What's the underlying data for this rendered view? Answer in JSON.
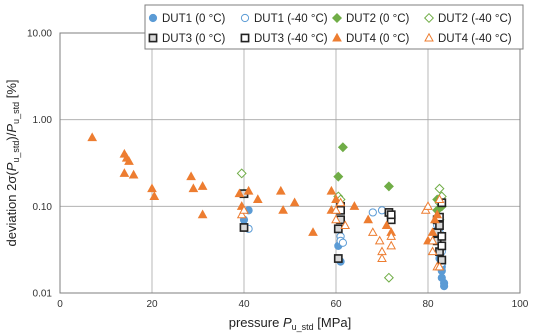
{
  "chart_data": {
    "type": "scatter",
    "title": "",
    "xlabel": "pressure P_u_std [MPa]",
    "ylabel": "deviation 2σ(P_u_std)/P_u_std [%]",
    "axis_titles": {
      "x": {
        "prefix": "pressure ",
        "symbol": "P",
        "sub": "u_std",
        "suffix": " [MPa]"
      },
      "y": {
        "prefix": "deviation 2σ(",
        "symbol": "P",
        "sub": "u_std",
        "mid": ")/",
        "symbol2": "P",
        "sub2": "u_std",
        "suffix": " [%]"
      }
    },
    "xlim": [
      0,
      100
    ],
    "ylim": [
      0.01,
      10
    ],
    "yscale": "log",
    "x_ticks": [
      0,
      20,
      40,
      60,
      80,
      100
    ],
    "x_tick_labels": [
      "0",
      "20",
      "40",
      "60",
      "80",
      "100"
    ],
    "y_ticks": [
      0.01,
      0.1,
      1,
      10
    ],
    "y_tick_labels": [
      "0.01",
      "0.10",
      "1.00",
      "10.00"
    ],
    "grid": true,
    "legend": "top-right",
    "colors": {
      "blue": "#5b9bd5",
      "green": "#70ad47",
      "black": "#222222",
      "orange": "#ed7d31",
      "grid": "#a6a6a6"
    },
    "series": [
      {
        "name": "DUT1 (0 °C)",
        "marker": "circle",
        "filled": true,
        "color": "#5b9bd5",
        "points": [
          [
            40,
            0.07
          ],
          [
            40,
            0.06
          ],
          [
            41,
            0.09
          ],
          [
            60.5,
            0.035
          ],
          [
            61,
            0.023
          ],
          [
            82,
            0.04
          ],
          [
            82.5,
            0.03
          ],
          [
            82.5,
            0.025
          ],
          [
            83,
            0.02
          ],
          [
            83,
            0.018
          ],
          [
            83,
            0.015
          ],
          [
            83.5,
            0.013
          ],
          [
            83.5,
            0.012
          ]
        ]
      },
      {
        "name": "DUT1 (-40 °C)",
        "marker": "circle",
        "filled": false,
        "color": "#5b9bd5",
        "points": [
          [
            40,
            0.058
          ],
          [
            41,
            0.055
          ],
          [
            61,
            0.045
          ],
          [
            61,
            0.04
          ],
          [
            61.5,
            0.038
          ],
          [
            68,
            0.085
          ],
          [
            70,
            0.09
          ],
          [
            82,
            0.06
          ],
          [
            82.5,
            0.05
          ],
          [
            83,
            0.045
          ],
          [
            83,
            0.03
          ],
          [
            83,
            0.022
          ]
        ]
      },
      {
        "name": "DUT2 (0 °C)",
        "marker": "diamond",
        "filled": true,
        "color": "#70ad47",
        "points": [
          [
            40,
            0.14
          ],
          [
            60.5,
            0.22
          ],
          [
            61.5,
            0.48
          ],
          [
            71.5,
            0.17
          ],
          [
            82,
            0.12
          ],
          [
            82,
            0.09
          ],
          [
            82.5,
            0.07
          ],
          [
            83,
            0.1
          ]
        ]
      },
      {
        "name": "DUT2 (-40 °C)",
        "marker": "diamond",
        "filled": false,
        "color": "#70ad47",
        "points": [
          [
            39.5,
            0.24
          ],
          [
            60.5,
            0.13
          ],
          [
            61,
            0.12
          ],
          [
            71.5,
            0.015
          ],
          [
            82.5,
            0.16
          ],
          [
            82.5,
            0.11
          ],
          [
            83,
            0.13
          ]
        ]
      },
      {
        "name": "DUT3 (0 °C)",
        "marker": "square",
        "filled": true,
        "color": "#222222",
        "points": [
          [
            40,
            0.057
          ],
          [
            40,
            0.14
          ],
          [
            60.5,
            0.055
          ],
          [
            60.5,
            0.025
          ],
          [
            61,
            0.07
          ],
          [
            71.5,
            0.085
          ],
          [
            82,
            0.07
          ],
          [
            82,
            0.05
          ],
          [
            82,
            0.04
          ],
          [
            82.5,
            0.06
          ],
          [
            82.5,
            0.03
          ],
          [
            83,
            0.024
          ]
        ]
      },
      {
        "name": "DUT3 (-40 °C)",
        "marker": "square",
        "filled": false,
        "color": "#222222",
        "points": [
          [
            61,
            0.1
          ],
          [
            61,
            0.09
          ],
          [
            72,
            0.07
          ],
          [
            72,
            0.08
          ],
          [
            82.5,
            0.075
          ],
          [
            83,
            0.11
          ],
          [
            83,
            0.045
          ],
          [
            83,
            0.035
          ]
        ]
      },
      {
        "name": "DUT4 (0 °C)",
        "marker": "triangle",
        "filled": true,
        "color": "#ed7d31",
        "points": [
          [
            7,
            0.62
          ],
          [
            14,
            0.4
          ],
          [
            14.5,
            0.36
          ],
          [
            15,
            0.33
          ],
          [
            14,
            0.24
          ],
          [
            16,
            0.23
          ],
          [
            20,
            0.16
          ],
          [
            20.5,
            0.13
          ],
          [
            28.5,
            0.22
          ],
          [
            29,
            0.16
          ],
          [
            31,
            0.17
          ],
          [
            31,
            0.08
          ],
          [
            39,
            0.14
          ],
          [
            39.5,
            0.1
          ],
          [
            41,
            0.15
          ],
          [
            43,
            0.12
          ],
          [
            48,
            0.15
          ],
          [
            48.5,
            0.09
          ],
          [
            51,
            0.11
          ],
          [
            55,
            0.05
          ],
          [
            59,
            0.09
          ],
          [
            59,
            0.15
          ],
          [
            60,
            0.12
          ],
          [
            64,
            0.1
          ],
          [
            67,
            0.07
          ],
          [
            71,
            0.06
          ],
          [
            72,
            0.05
          ],
          [
            80,
            0.04
          ],
          [
            81,
            0.05
          ],
          [
            81.5,
            0.07
          ],
          [
            82,
            0.08
          ]
        ]
      },
      {
        "name": "DUT4 (-40 °C)",
        "marker": "triangle",
        "filled": false,
        "color": "#ed7d31",
        "points": [
          [
            39.5,
            0.08
          ],
          [
            40,
            0.09
          ],
          [
            60,
            0.07
          ],
          [
            60,
            0.09
          ],
          [
            61,
            0.11
          ],
          [
            62,
            0.06
          ],
          [
            68,
            0.05
          ],
          [
            69.5,
            0.04
          ],
          [
            70,
            0.03
          ],
          [
            70,
            0.025
          ],
          [
            72,
            0.045
          ],
          [
            72,
            0.035
          ],
          [
            79.5,
            0.09
          ],
          [
            80,
            0.1
          ],
          [
            81,
            0.04
          ],
          [
            81,
            0.03
          ],
          [
            82,
            0.02
          ],
          [
            82.5,
            0.12
          ],
          [
            82.5,
            0.02
          ]
        ]
      }
    ]
  }
}
